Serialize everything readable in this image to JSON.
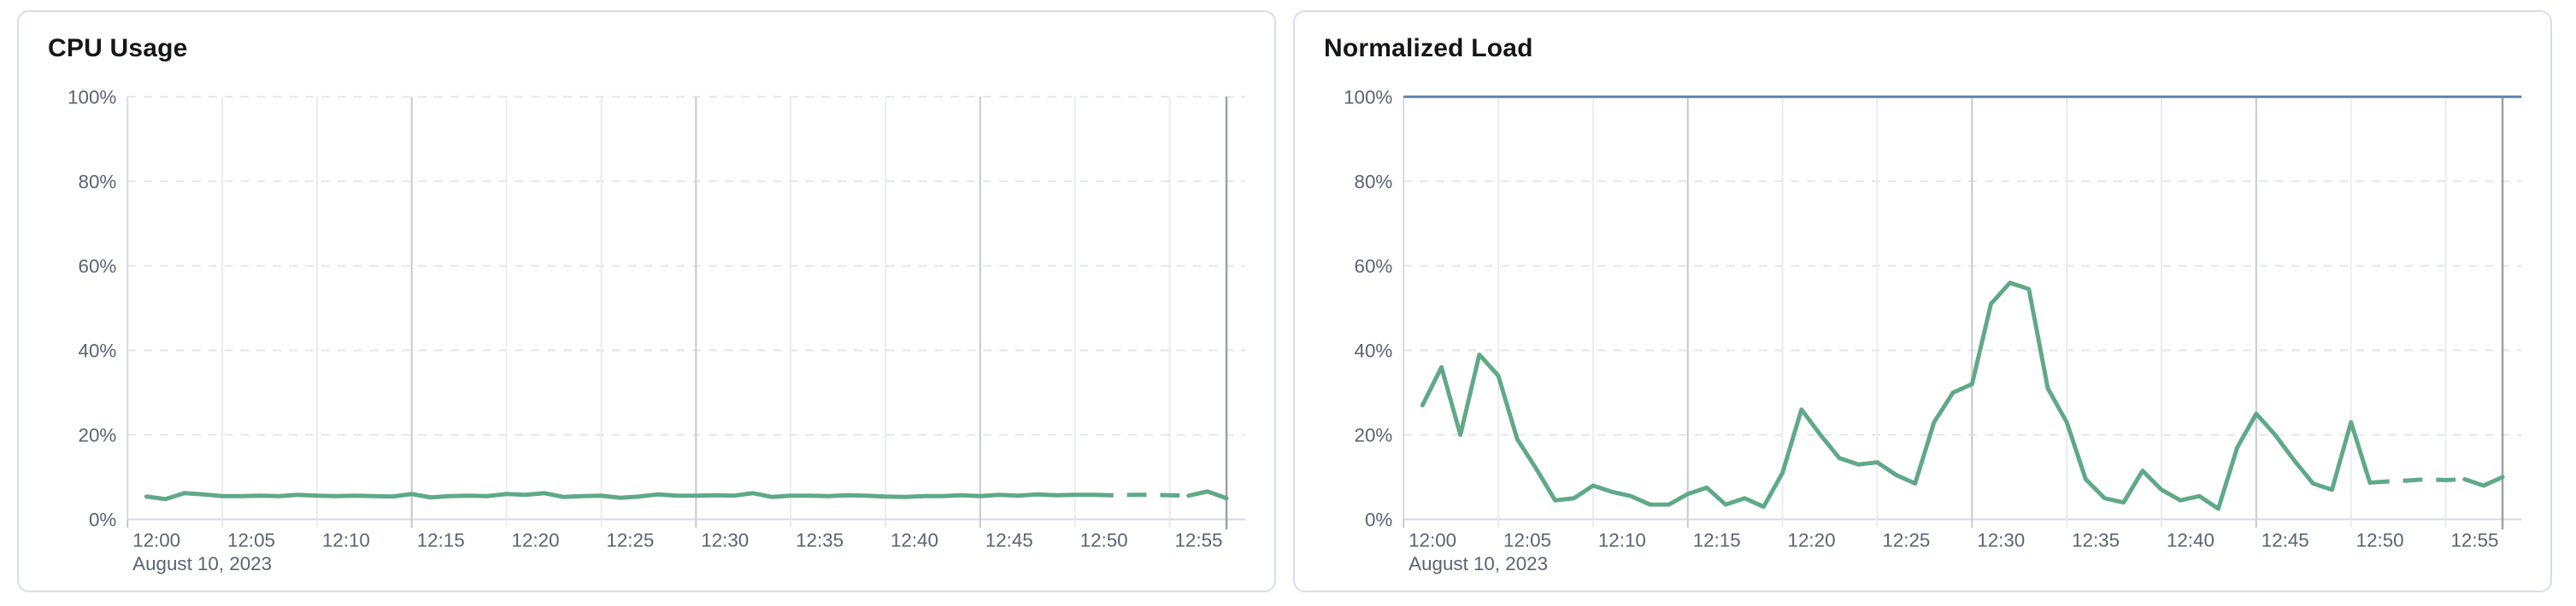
{
  "theme": {
    "page_background": "#FFFFFF",
    "panel_background": "#FFFFFF",
    "panel_border": "#D9DDE8",
    "title_color": "#141619",
    "tick_text_color": "#5A6372",
    "grid_dashed_color": "#E3E6EC",
    "grid_vertical_light": "#EAECF0",
    "grid_vertical_strong": "#C6C9D0",
    "axis_line_color": "#D7DAE0",
    "end_cursor_color": "#9DA0A7",
    "series_green": "#5FA987",
    "limit_blue": "#6385AF"
  },
  "chart_data": [
    {
      "type": "line",
      "title": "CPU Usage",
      "x_date_label": "August 10, 2023",
      "x_tick_labels": [
        "12:00",
        "12:05",
        "12:10",
        "12:15",
        "12:20",
        "12:25",
        "12:30",
        "12:35",
        "12:40",
        "12:45",
        "12:50",
        "12:55"
      ],
      "y_tick_labels": [
        "0%",
        "20%",
        "40%",
        "60%",
        "80%",
        "100%"
      ],
      "y_tick_values": [
        0,
        20,
        40,
        60,
        80,
        100
      ],
      "ylim": [
        0,
        100
      ],
      "x_start_minute": 1,
      "x_step_minutes": 1,
      "grid": true,
      "legend": false,
      "series": [
        {
          "name": "cpu-usage",
          "unit": "%",
          "color": "#5FA987",
          "dash_segment_indices": [
            50,
            55
          ],
          "values": [
            5.4,
            4.8,
            6.2,
            5.9,
            5.5,
            5.5,
            5.6,
            5.5,
            5.8,
            5.6,
            5.5,
            5.6,
            5.5,
            5.4,
            6.0,
            5.2,
            5.5,
            5.6,
            5.5,
            6.0,
            5.8,
            6.2,
            5.3,
            5.5,
            5.6,
            5.1,
            5.4,
            5.9,
            5.6,
            5.6,
            5.7,
            5.6,
            6.2,
            5.3,
            5.6,
            5.6,
            5.5,
            5.7,
            5.6,
            5.4,
            5.3,
            5.5,
            5.5,
            5.7,
            5.5,
            5.8,
            5.6,
            5.9,
            5.7,
            5.8,
            5.8,
            5.7,
            5.8,
            5.8,
            5.7,
            5.6,
            6.6,
            5.0
          ]
        }
      ]
    },
    {
      "type": "line",
      "title": "Normalized Load",
      "x_date_label": "August 10, 2023",
      "x_tick_labels": [
        "12:00",
        "12:05",
        "12:10",
        "12:15",
        "12:20",
        "12:25",
        "12:30",
        "12:35",
        "12:40",
        "12:45",
        "12:50",
        "12:55"
      ],
      "y_tick_labels": [
        "0%",
        "20%",
        "40%",
        "60%",
        "80%",
        "100%"
      ],
      "y_tick_values": [
        0,
        20,
        40,
        60,
        80,
        100
      ],
      "ylim": [
        0,
        100
      ],
      "x_start_minute": 1,
      "x_step_minutes": 1,
      "grid": true,
      "legend": false,
      "series": [
        {
          "name": "normalized-load",
          "unit": "%",
          "color": "#5FA987",
          "dash_segment_indices": [
            50,
            55
          ],
          "values": [
            27,
            36,
            20,
            39,
            34,
            19,
            12,
            4.5,
            5,
            8,
            6.5,
            5.5,
            3.5,
            3.5,
            6,
            7.5,
            3.5,
            5,
            3,
            11,
            26,
            20,
            14.5,
            13,
            13.5,
            10.5,
            8.5,
            23,
            30,
            32,
            51,
            56,
            54.5,
            31,
            23,
            9.5,
            5,
            4,
            11.5,
            7,
            4.5,
            5.5,
            2.5,
            17,
            25,
            20,
            14,
            8.5,
            7,
            23,
            8.7,
            9,
            9.2,
            9.5,
            9.3,
            9.5,
            8,
            10
          ]
        },
        {
          "name": "limit-line",
          "type": "hline",
          "value": 100,
          "color": "#6385AF"
        }
      ]
    }
  ]
}
